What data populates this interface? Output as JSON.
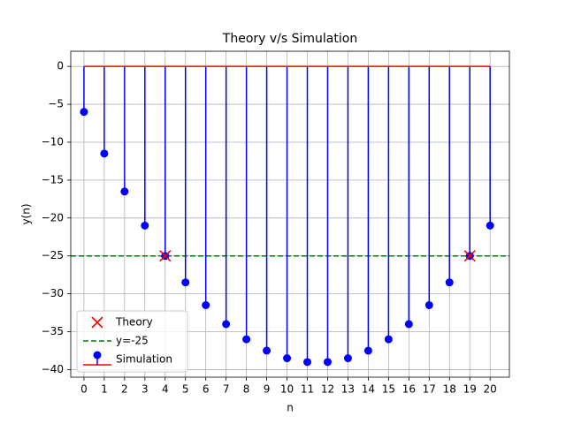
{
  "chart_data": {
    "type": "stem",
    "title": "Theory v/s Simulation",
    "xlabel": "n",
    "ylabel": "y(n)",
    "xlim": [
      -0.65,
      20.95
    ],
    "ylim": [
      -41,
      2
    ],
    "x_ticks": [
      0,
      1,
      2,
      3,
      4,
      5,
      6,
      7,
      8,
      9,
      10,
      11,
      12,
      13,
      14,
      15,
      16,
      17,
      18,
      19,
      20
    ],
    "y_ticks": [
      0,
      -5,
      -10,
      -15,
      -20,
      -25,
      -30,
      -35,
      -40
    ],
    "grid": true,
    "legend_position": "lower-left",
    "series": [
      {
        "name": "Simulation",
        "kind": "stem",
        "color": "#0000ff",
        "baseline_color": "#ff0000",
        "baseline": 0,
        "x": [
          0,
          1,
          2,
          3,
          4,
          5,
          6,
          7,
          8,
          9,
          10,
          11,
          12,
          13,
          14,
          15,
          16,
          17,
          18,
          19,
          20
        ],
        "values": [
          -6,
          -11.5,
          -16.5,
          -21,
          -25,
          -28.5,
          -31.5,
          -34,
          -36,
          -37.5,
          -38.5,
          -39,
          -39,
          -38.5,
          -37.5,
          -36,
          -34,
          -31.5,
          -28.5,
          -25,
          -21
        ]
      },
      {
        "name": "Theory",
        "kind": "scatter",
        "marker": "x",
        "color": "#ff0000",
        "x": [
          4,
          19
        ],
        "values": [
          -25,
          -25
        ]
      },
      {
        "name": "y=-25",
        "kind": "hline",
        "color": "#008000",
        "style": "dashed",
        "value": -25
      }
    ],
    "legend": [
      "Theory",
      "y=-25",
      "Simulation"
    ]
  }
}
